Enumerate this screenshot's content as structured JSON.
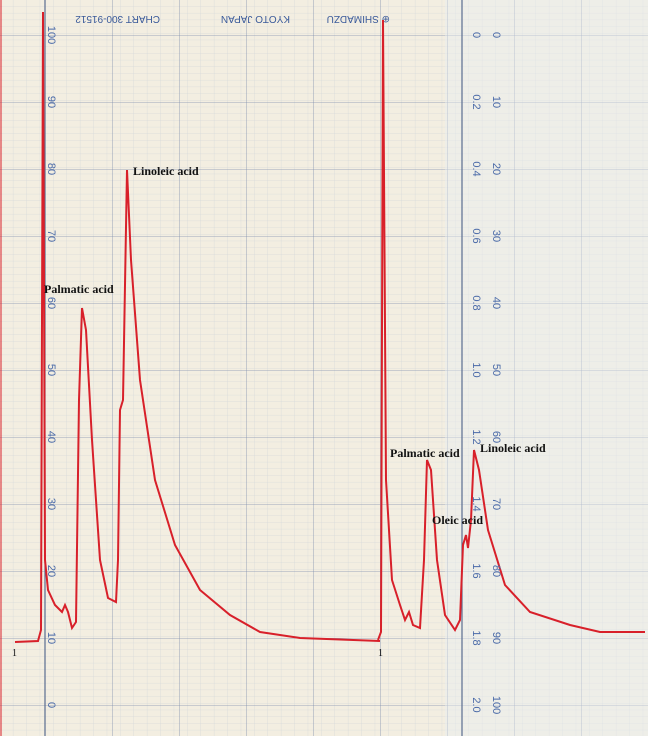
{
  "header": {
    "brand": "⊕ SHIMADZU",
    "city": "KYOTO JAPAN",
    "chart_no": "CHART 300-91512"
  },
  "left_scale": [
    "100",
    "90",
    "80",
    "70",
    "60",
    "50",
    "40",
    "30",
    "20",
    "10",
    "0"
  ],
  "right_scale_a": [
    "0",
    "0.2",
    "0.4",
    "0.6",
    "0.8",
    "1.0",
    "1.2",
    "1.4",
    "1.6",
    "1.8",
    "2.0"
  ],
  "right_scale_b": [
    "0",
    "10",
    "20",
    "30",
    "40",
    "50",
    "60",
    "70",
    "80",
    "90",
    "100"
  ],
  "annotations": {
    "left_palmatic": "Palmatic acid",
    "left_linoleic": "Linoleic acid",
    "right_palmatic": "Palmatic acid",
    "right_oleic": "Oleic acid",
    "right_linoleic": "Linoleic acid",
    "left_marker": "1",
    "right_marker": "1"
  }
}
